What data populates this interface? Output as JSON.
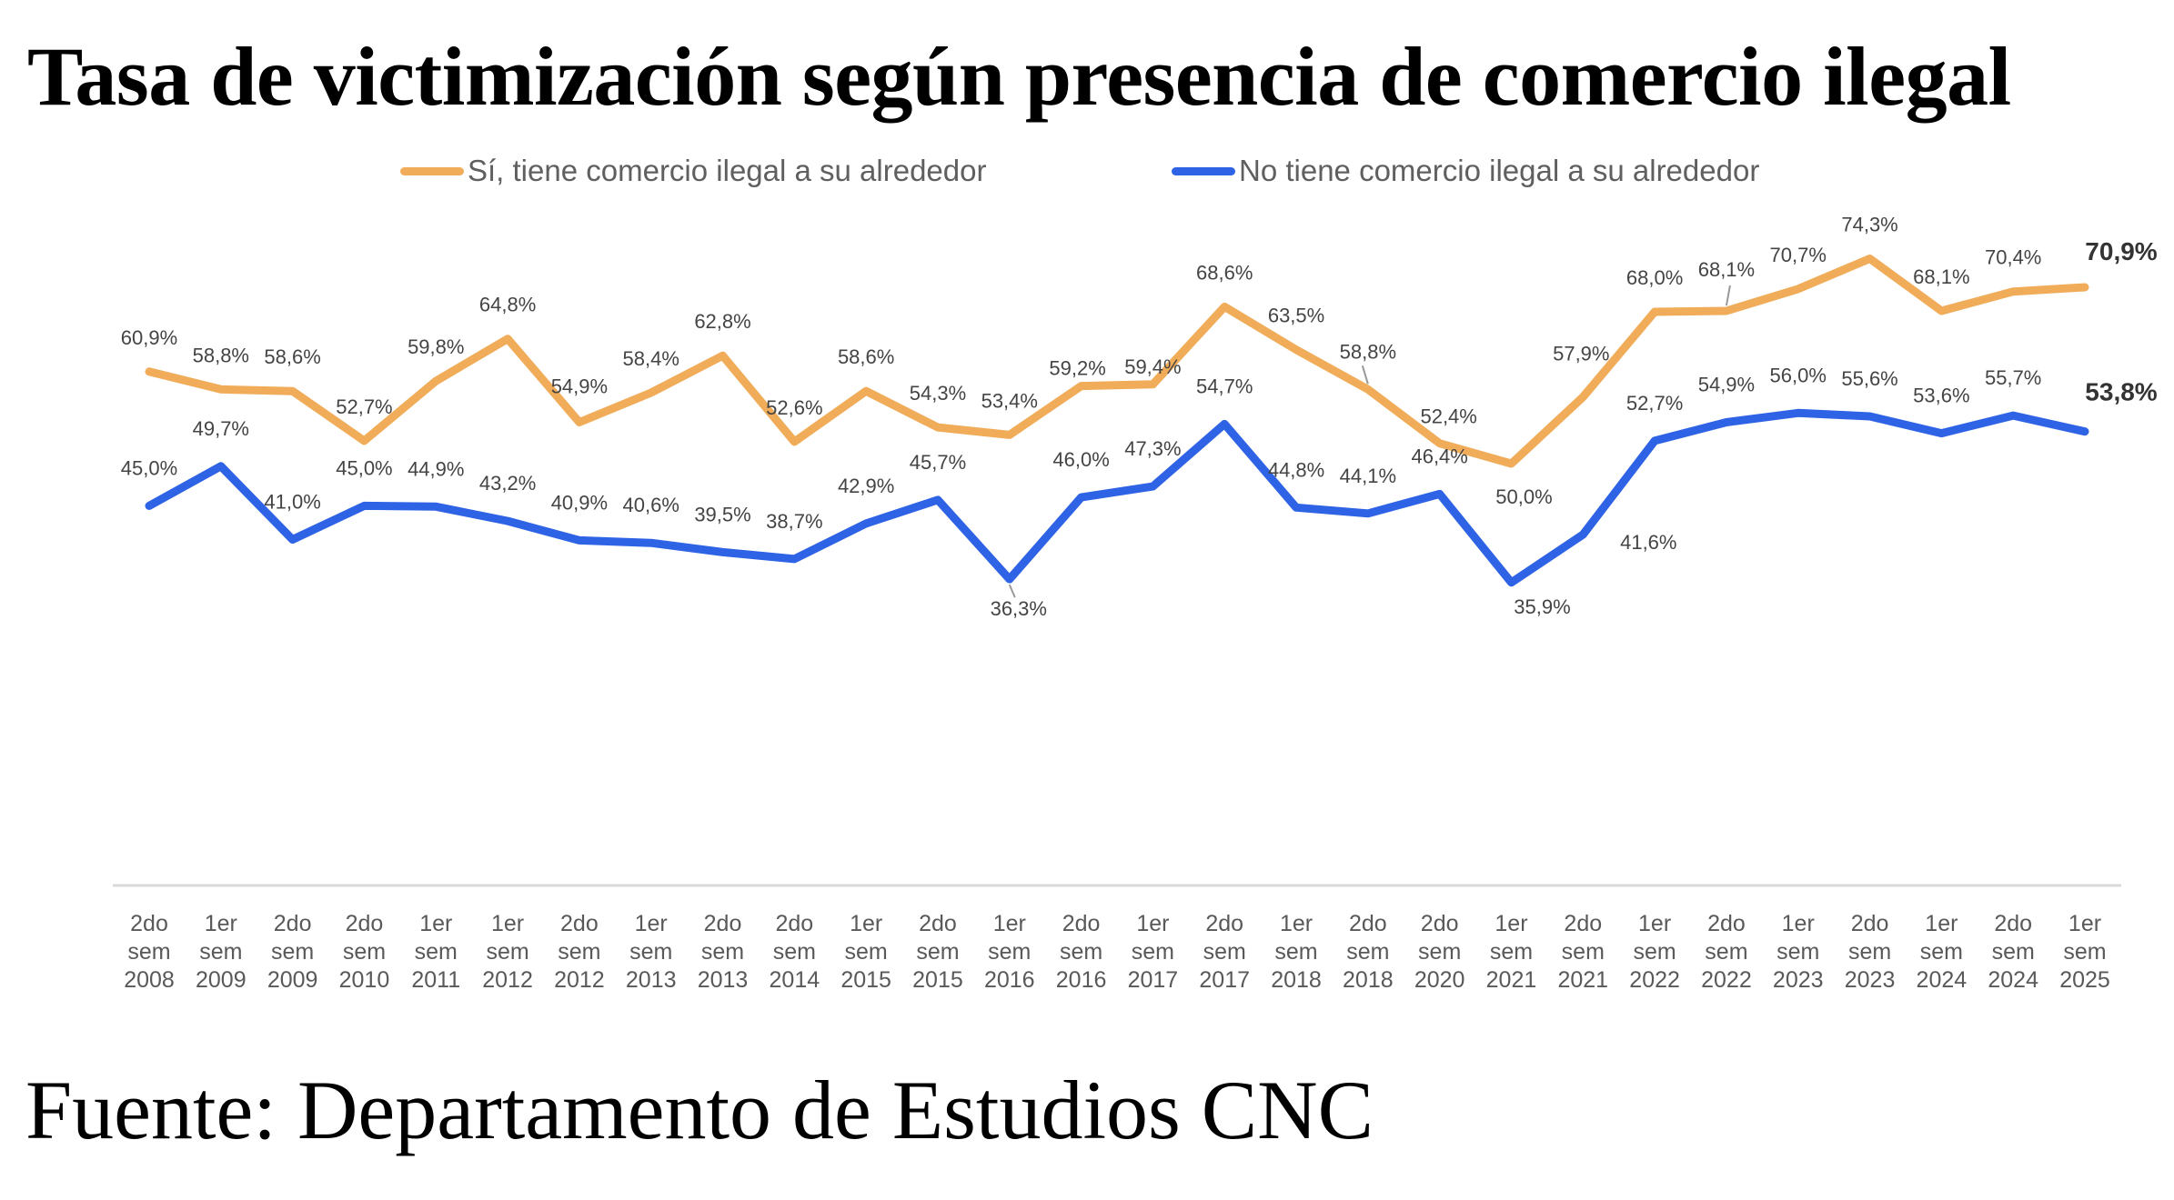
{
  "chart_data": {
    "type": "line",
    "title": "Tasa de victimización según presencia de comercio ilegal",
    "xlabel": "",
    "ylabel": "",
    "ylim": [
      0,
      80
    ],
    "grid": false,
    "legend_position": "top-center",
    "categories": [
      "2do sem 2008",
      "1er sem 2009",
      "2do sem 2009",
      "2do sem 2010",
      "1er sem 2011",
      "1er sem 2012",
      "2do sem 2012",
      "1er sem 2013",
      "2do sem 2013",
      "2do sem 2014",
      "1er sem 2015",
      "2do sem 2015",
      "1er sem 2016",
      "2do sem 2016",
      "1er sem 2017",
      "2do sem 2017",
      "1er sem 2018",
      "2do sem 2018",
      "2do sem 2020",
      "1er sem 2021",
      "2do sem 2021",
      "1er sem 2022",
      "2do sem 2022",
      "1er sem 2023",
      "2do sem 2023",
      "1er sem 2024",
      "2do sem 2024",
      "1er sem 2025"
    ],
    "category_lines": [
      [
        "2do",
        "sem",
        "2008"
      ],
      [
        "1er",
        "sem",
        "2009"
      ],
      [
        "2do",
        "sem",
        "2009"
      ],
      [
        "2do",
        "sem",
        "2010"
      ],
      [
        "1er",
        "sem",
        "2011"
      ],
      [
        "1er",
        "sem",
        "2012"
      ],
      [
        "2do",
        "sem",
        "2012"
      ],
      [
        "1er",
        "sem",
        "2013"
      ],
      [
        "2do",
        "sem",
        "2013"
      ],
      [
        "2do",
        "sem",
        "2014"
      ],
      [
        "1er",
        "sem",
        "2015"
      ],
      [
        "2do",
        "sem",
        "2015"
      ],
      [
        "1er",
        "sem",
        "2016"
      ],
      [
        "2do",
        "sem",
        "2016"
      ],
      [
        "1er",
        "sem",
        "2017"
      ],
      [
        "2do",
        "sem",
        "2017"
      ],
      [
        "1er",
        "sem",
        "2018"
      ],
      [
        "2do",
        "sem",
        "2018"
      ],
      [
        "2do",
        "sem",
        "2020"
      ],
      [
        "1er",
        "sem",
        "2021"
      ],
      [
        "2do",
        "sem",
        "2021"
      ],
      [
        "1er",
        "sem",
        "2022"
      ],
      [
        "2do",
        "sem",
        "2022"
      ],
      [
        "1er",
        "sem",
        "2023"
      ],
      [
        "2do",
        "sem",
        "2023"
      ],
      [
        "1er",
        "sem",
        "2024"
      ],
      [
        "2do",
        "sem",
        "2024"
      ],
      [
        "1er",
        "sem",
        "2025"
      ]
    ],
    "series": [
      {
        "name": "Sí, tiene comercio ilegal a su alrededor",
        "color": "#F0AC58",
        "values": [
          60.9,
          58.8,
          58.6,
          52.7,
          59.8,
          64.8,
          54.9,
          58.4,
          62.8,
          52.6,
          58.6,
          54.3,
          53.4,
          59.2,
          59.4,
          68.6,
          63.5,
          58.8,
          52.4,
          50.0,
          57.9,
          68.0,
          68.1,
          70.7,
          74.3,
          68.1,
          70.4,
          70.9
        ],
        "labels": [
          "60,9%",
          "58,8%",
          "58,6%",
          "52,7%",
          "59,8%",
          "64,8%",
          "54,9%",
          "58,4%",
          "62,8%",
          "52,6%",
          "58,6%",
          "54,3%",
          "53,4%",
          "59,2%",
          "59,4%",
          "68,6%",
          "63,5%",
          "58,8%",
          "52,4%",
          "50,0%",
          "57,9%",
          "68,0%",
          "68,1%",
          "70,7%",
          "74,3%",
          "68,1%",
          "70,4%",
          "70,9%"
        ]
      },
      {
        "name": "No tiene comercio ilegal a su alrededor",
        "color": "#2F63E6",
        "values": [
          45.0,
          49.7,
          41.0,
          45.0,
          44.9,
          43.2,
          40.9,
          40.6,
          39.5,
          38.7,
          42.9,
          45.7,
          36.3,
          46.0,
          47.3,
          54.7,
          44.8,
          44.1,
          46.4,
          35.9,
          41.6,
          52.7,
          54.9,
          56.0,
          55.6,
          53.6,
          55.7,
          53.8
        ],
        "labels": [
          "45,0%",
          "49,7%",
          "41,0%",
          "45,0%",
          "44,9%",
          "43,2%",
          "40,9%",
          "40,6%",
          "39,5%",
          "38,7%",
          "42,9%",
          "45,7%",
          "36,3%",
          "46,0%",
          "47,3%",
          "54,7%",
          "44,8%",
          "44,1%",
          "46,4%",
          "35,9%",
          "41,6%",
          "52,7%",
          "54,9%",
          "56,0%",
          "55,6%",
          "53,6%",
          "55,7%",
          "53,8%"
        ]
      }
    ],
    "highlight_last_label": true
  },
  "header": {
    "title": "Tasa de victimización según presencia de comercio ilegal"
  },
  "legend": {
    "items": [
      {
        "label": "Sí, tiene comercio ilegal a su alrededor",
        "color": "#F0AC58"
      },
      {
        "label": "No tiene comercio ilegal a su alrededor",
        "color": "#2F63E6"
      }
    ]
  },
  "footer": {
    "source": "Fuente: Departamento de Estudios CNC"
  }
}
